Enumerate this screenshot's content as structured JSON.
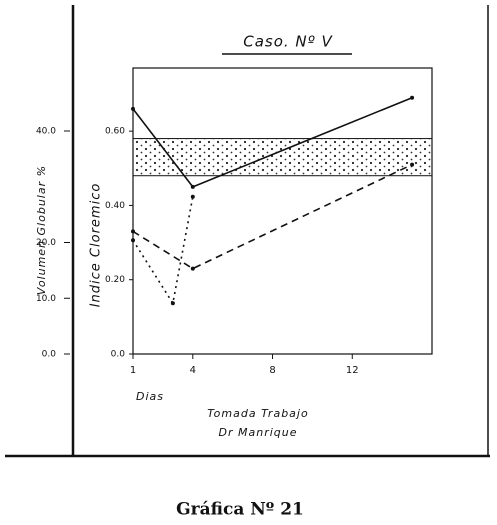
{
  "chart_data": {
    "type": "line",
    "title": "Caso. Nº V",
    "ylabel": "Indice Cloremico",
    "y2label": "Volumen Globular %",
    "xlabel": "Dias",
    "credit": [
      "Tomada Trabajo",
      "Dr Manrique"
    ],
    "caption": "Gráfica Nº 21",
    "xlim": [
      1,
      16
    ],
    "xticks": [
      1,
      4,
      8,
      12
    ],
    "ylim": [
      0,
      0.77
    ],
    "yticks": [
      {
        "value": 0,
        "label": "0.0"
      },
      {
        "value": 0.2,
        "label": "0.20"
      },
      {
        "value": 0.4,
        "label": "0.40"
      },
      {
        "value": 0.6,
        "label": "0.60"
      }
    ],
    "y2lim": [
      0,
      40
    ],
    "y2ticks": [
      {
        "value": 0,
        "label": "0.0"
      },
      {
        "value": 10,
        "label": "10.0"
      },
      {
        "value": 20,
        "label": "20.0"
      },
      {
        "value": 40,
        "label": "40.0"
      }
    ],
    "band": [
      0.48,
      0.58
    ],
    "series": [
      {
        "color": "#111",
        "style": "solid",
        "x": [
          1,
          4,
          15
        ],
        "values": [
          0.66,
          0.45,
          0.69
        ]
      },
      {
        "color": "#111",
        "style": "dashed",
        "x": [
          1,
          4,
          15
        ],
        "values": [
          0.33,
          0.23,
          0.51
        ]
      },
      {
        "color": "#111",
        "style": "dotted",
        "axis": "y2",
        "x": [
          1,
          3,
          4
        ],
        "values": [
          20.4,
          9.1,
          28.2
        ]
      }
    ]
  }
}
